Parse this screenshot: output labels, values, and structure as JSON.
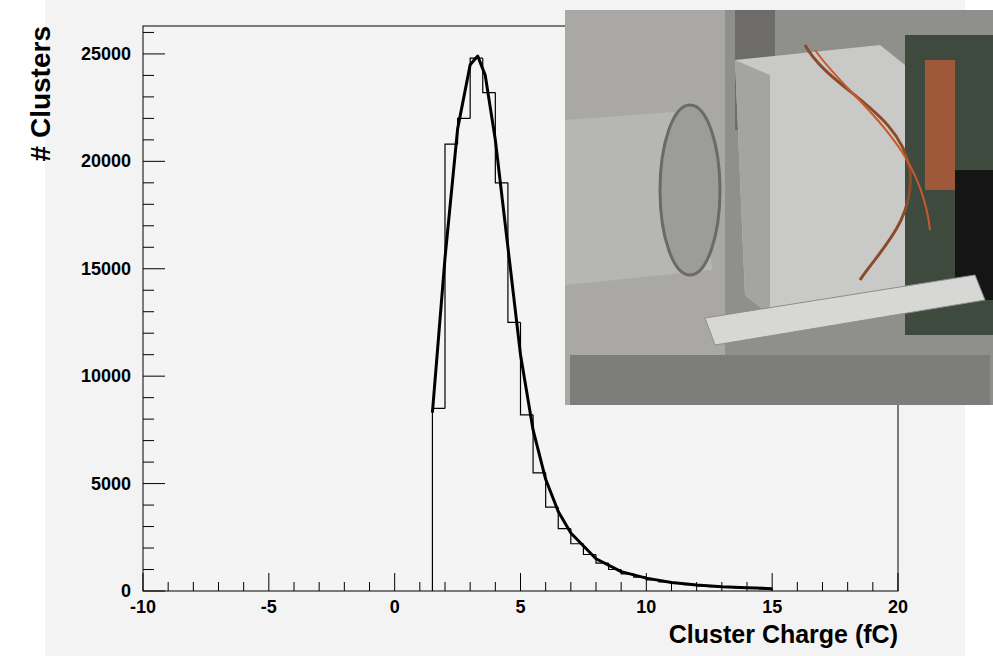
{
  "chart_data": {
    "type": "histogram",
    "x_label": "Cluster Charge (fC)",
    "y_label": "# Clusters",
    "bins": [
      1.5,
      2.0,
      2.5,
      3.0,
      3.5,
      4.0,
      4.5,
      5.0,
      5.5,
      6.0,
      6.5,
      7.0,
      7.5,
      8.0,
      8.5,
      9.0,
      9.5,
      10.0,
      10.5,
      11.0,
      11.5,
      12.0,
      12.5,
      13.0,
      13.5,
      14.0,
      14.5,
      15.0
    ],
    "series": [
      {
        "type": "bar",
        "color": "#000000",
        "values": [
          8500,
          20800,
          22000,
          24800,
          23200,
          19000,
          12500,
          8200,
          5500,
          3900,
          2900,
          2200,
          1700,
          1300,
          1000,
          800,
          650,
          520,
          420,
          350,
          290,
          240,
          200,
          170,
          140,
          120,
          100
        ]
      },
      {
        "type": "line",
        "color": "#000000",
        "x": [
          1.5,
          2.0,
          2.5,
          3.0,
          3.3,
          3.6,
          4.0,
          4.5,
          5.0,
          5.5,
          6.0,
          6.5,
          7.0,
          8.0,
          9.0,
          10.0,
          11.0,
          12.0,
          13.0,
          14.0,
          15.0
        ],
        "values": [
          8300,
          15500,
          21500,
          24500,
          24900,
          24000,
          21000,
          16000,
          11000,
          7500,
          5200,
          3700,
          2700,
          1500,
          900,
          600,
          400,
          280,
          200,
          150,
          110
        ]
      }
    ],
    "xlim": [
      -10,
      20
    ],
    "xticks": [
      -10,
      -5,
      0,
      5,
      10,
      15,
      20
    ],
    "ylim": [
      0,
      26300
    ],
    "yticks": [
      0,
      5000,
      10000,
      15000,
      20000,
      25000
    ],
    "grid": false
  }
}
